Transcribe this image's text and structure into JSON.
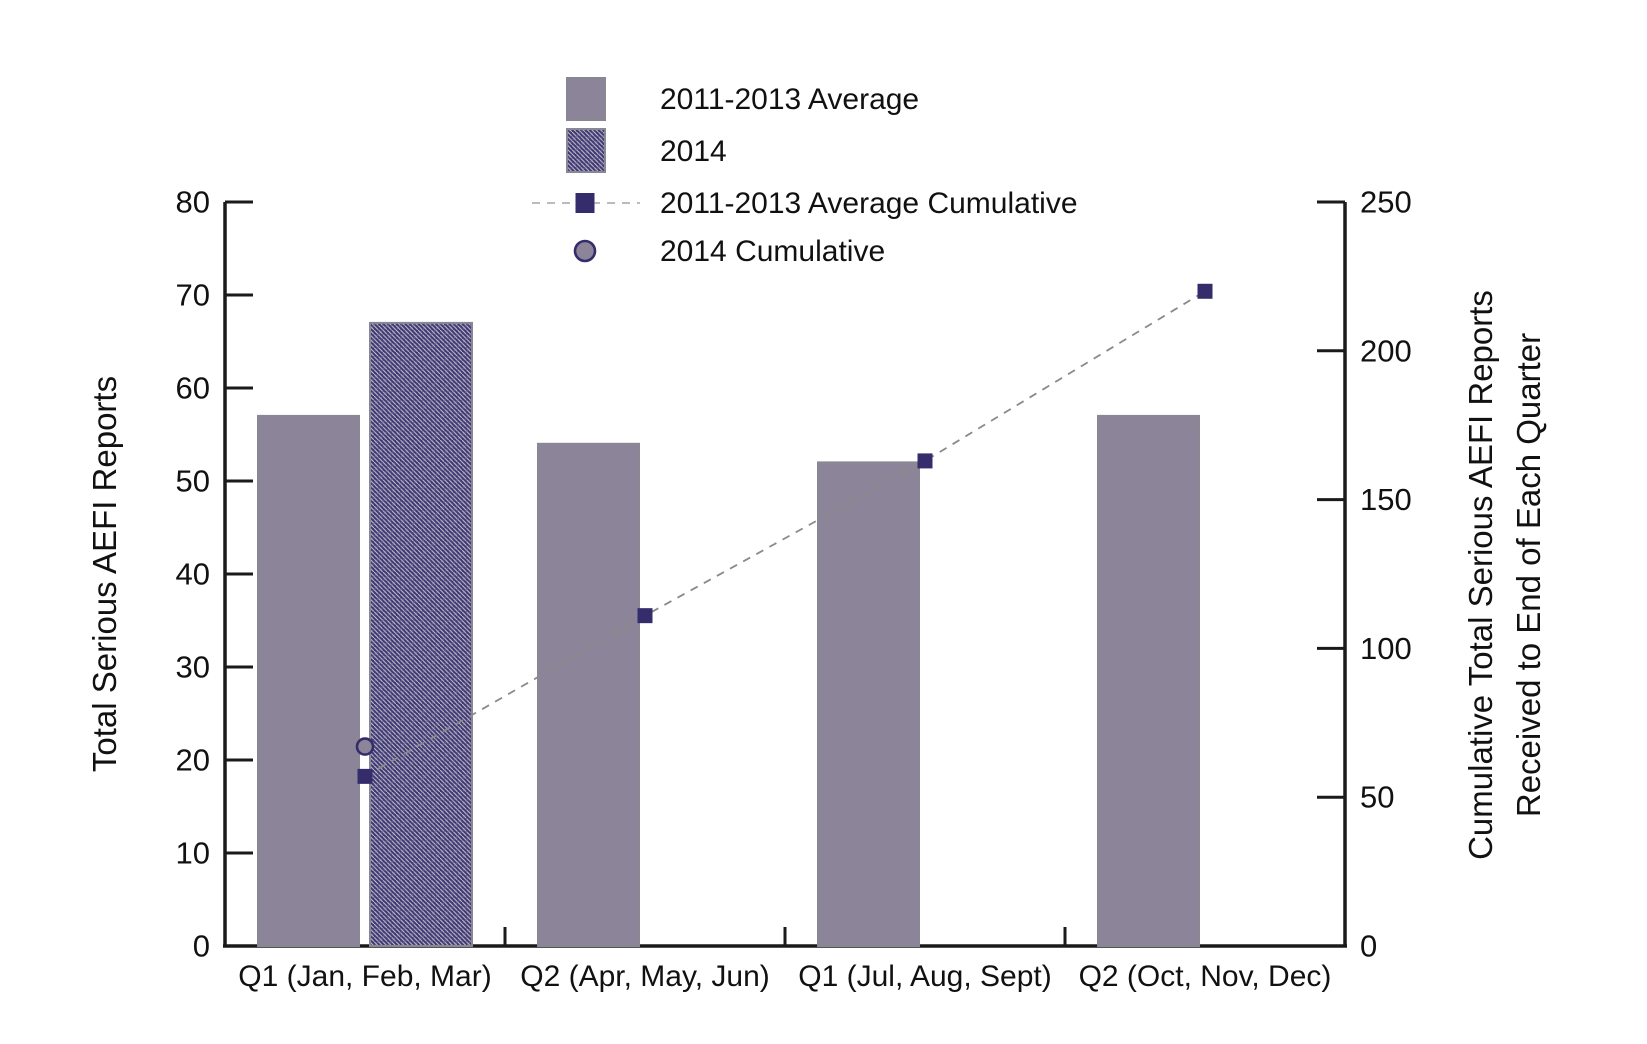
{
  "page": {
    "background": "#ffffff"
  },
  "legend": {
    "items": [
      {
        "label": "2011-2013 Average",
        "swatch": "solid-square"
      },
      {
        "label": "2014",
        "swatch": "hatched-square"
      },
      {
        "label": "2011-2013 Average Cumulative",
        "swatch": "dashed-line-with-square-marker"
      },
      {
        "label": "2014 Cumulative",
        "swatch": "circle-marker"
      }
    ]
  },
  "chart_data": {
    "type": "bar",
    "subtype": "combo-bar-line-dual-axis",
    "categories": [
      "Q1 (Jan, Feb, Mar)",
      "Q2 (Apr, May, Jun)",
      "Q1 (Jul, Aug, Sept)",
      "Q2 (Oct, Nov, Dec)"
    ],
    "bar_series": [
      {
        "name": "2011-2013 Average",
        "pattern": "solid",
        "axis": "left",
        "values": [
          57,
          54,
          52,
          57
        ]
      },
      {
        "name": "2014",
        "pattern": "hatched",
        "axis": "left",
        "values": [
          67,
          null,
          null,
          null
        ]
      }
    ],
    "line_series": [
      {
        "name": "2011-2013 Average Cumulative",
        "axis": "right",
        "marker": "square",
        "line": "dashed",
        "values": [
          57,
          111,
          163,
          220
        ]
      },
      {
        "name": "2014 Cumulative",
        "axis": "right",
        "marker": "circle",
        "line": "none",
        "values": [
          67,
          null,
          null,
          null
        ]
      }
    ],
    "left_axis": {
      "title": "Total  Serious AEFI Reports",
      "min": 0,
      "max": 80,
      "ticks": [
        0,
        10,
        20,
        30,
        40,
        50,
        60,
        70,
        80
      ]
    },
    "right_axis": {
      "title_line1": "Cumulative Total Serious AEFI Reports",
      "title_line2": "Received to End of Each Quarter",
      "min": 0,
      "max": 250,
      "ticks": [
        0,
        50,
        100,
        150,
        200,
        250
      ]
    },
    "grid": "off",
    "legend_position": "top-center",
    "colors": {
      "bar_fill": "#8C8599",
      "bar_stroke": "#8A8795",
      "hatch_base": "#3E3779",
      "hatch_line": "#CFCCC2",
      "hatch_cross": "#9C95C0",
      "marker_dark": "#352C6B",
      "dashed_line": "#8A8A8A",
      "legend_dash": "#BBBBBB",
      "axis": "#1A1A1A"
    }
  }
}
